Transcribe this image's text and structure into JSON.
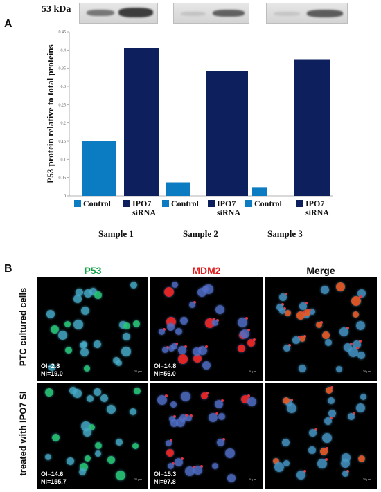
{
  "panel_a": {
    "label": "A",
    "blot_label": "53 kDa",
    "sample_labels": [
      "Sample 1",
      "Sample 2",
      "Sample 3"
    ]
  },
  "panel_b": {
    "label": "B",
    "columns": [
      {
        "label": "P53",
        "color": "#16a34a"
      },
      {
        "label": "MDM2",
        "color": "#e11d1d"
      },
      {
        "label": "Merge",
        "color": "#111111"
      }
    ],
    "rows": [
      {
        "label": "PTC cultured cells",
        "cells": [
          {
            "stain": "green",
            "lines": [
              "OI=2.8",
              "NI=19.0"
            ]
          },
          {
            "stain": "red",
            "lines": [
              "OI=14.8",
              "NI=56.0"
            ]
          },
          {
            "stain": "merge",
            "lines": []
          }
        ]
      },
      {
        "label": "treated with IPO7 SI",
        "cells": [
          {
            "stain": "green",
            "lines": [
              "OI=14.6",
              "NI=155.7"
            ]
          },
          {
            "stain": "red",
            "lines": [
              "OI=15.3",
              "NI=97.8"
            ]
          },
          {
            "stain": "merge",
            "lines": []
          }
        ]
      }
    ],
    "scale_label": "20 µm"
  },
  "chart_data": {
    "type": "bar",
    "ylabel": "P53 protein relative to total proteins",
    "xlabel": "",
    "ylim": [
      0,
      0.45
    ],
    "yticks": [
      "0",
      "0.05",
      "0.1",
      "0.15",
      "0.2",
      "0.25",
      "0.3",
      "0.35",
      "0.4",
      "0.45"
    ],
    "grid": false,
    "bars": [
      {
        "category": "Control",
        "group": "Sample 1",
        "value": 0.15,
        "color": "#0b7cc1"
      },
      {
        "category": "IPO7 siRNA",
        "group": "Sample 1",
        "value": 0.405,
        "color": "#0d1f5c"
      },
      {
        "category": "Control",
        "group": "Sample 2",
        "value": 0.037,
        "color": "#0b7cc1"
      },
      {
        "category": "IPO7 siRNA",
        "group": "Sample 2",
        "value": 0.342,
        "color": "#0d1f5c"
      },
      {
        "category": "Control",
        "group": "Sample 3",
        "value": 0.024,
        "color": "#0b7cc1"
      },
      {
        "category": "IPO7 siRNA",
        "group": "Sample 3",
        "value": 0.375,
        "color": "#0d1f5c"
      }
    ],
    "legend_items": [
      {
        "label": "Control",
        "color": "#0b7cc1"
      },
      {
        "label": "IPO7 siRNA",
        "color": "#0d1f5c"
      },
      {
        "label": "Control",
        "color": "#0b7cc1"
      },
      {
        "label": "IPO7 siRNA",
        "color": "#0d1f5c"
      },
      {
        "label": "Control",
        "color": "#0b7cc1"
      },
      {
        "label": "IPO7 siRNA",
        "color": "#0d1f5c"
      }
    ]
  }
}
